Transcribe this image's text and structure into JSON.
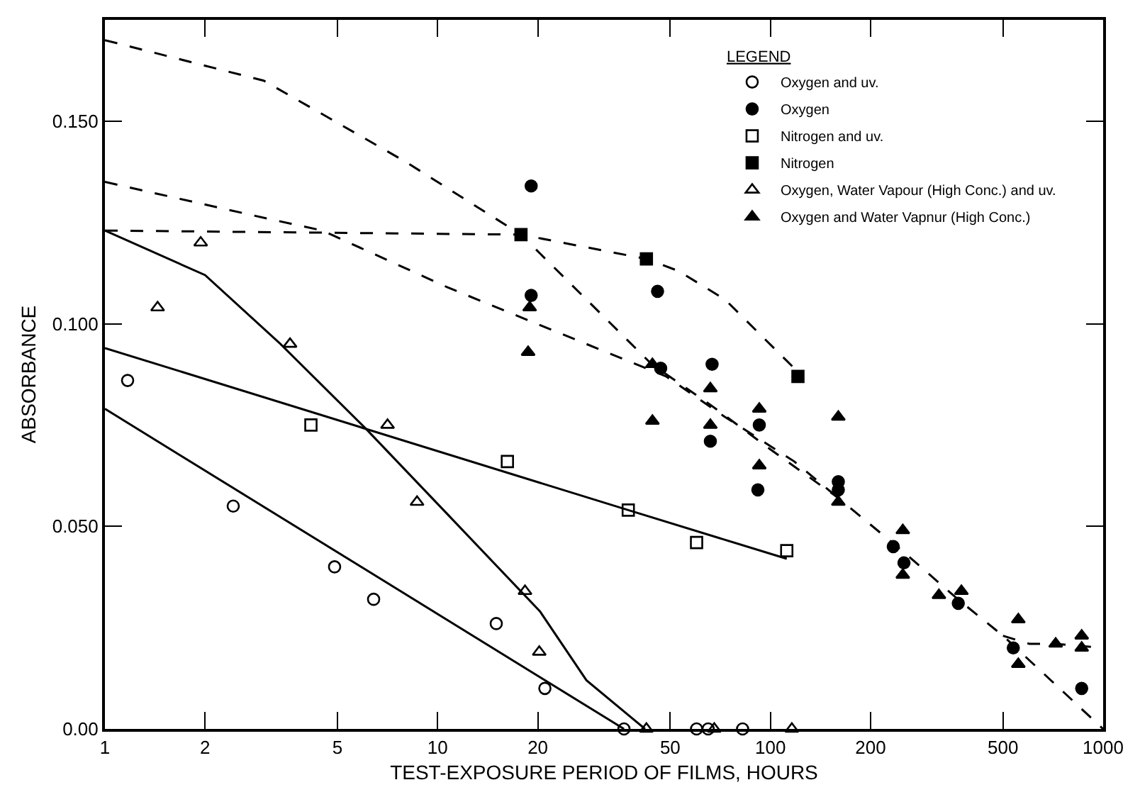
{
  "chart_data": {
    "type": "scatter",
    "xlabel": "TEST-EXPOSURE PERIOD OF FILMS, HOURS",
    "ylabel": "ABSORBANCE",
    "legend_title": "LEGEND",
    "log": "x",
    "xlim": [
      1,
      1000
    ],
    "xticks": [
      1,
      2,
      5,
      10,
      20,
      50,
      100,
      200,
      500,
      1000
    ],
    "ylim": [
      0,
      0.175
    ],
    "yticks": [
      {
        "value": 0,
        "label": "0.00"
      },
      {
        "value": 0.05,
        "label": "0.050"
      },
      {
        "value": 0.1,
        "label": "0.100"
      },
      {
        "value": 0.15,
        "label": "0.150"
      }
    ],
    "legend": "top right",
    "series": [
      {
        "name": "Oxygen and uv.",
        "color": "#000000",
        "marker": "circle-open",
        "x": [
          1.17,
          2.43,
          4.9,
          6.42,
          15.0,
          21.0,
          36.3,
          60,
          65,
          82.5
        ],
        "values": [
          0.086,
          0.055,
          0.04,
          0.032,
          0.026,
          0.01,
          0,
          0,
          0,
          0
        ]
      },
      {
        "name": "Oxygen",
        "color": "#000000",
        "marker": "circle",
        "x": [
          19.1,
          19.1,
          45.8,
          46.8,
          66.8,
          66,
          92.6,
          91.7,
          160,
          160,
          234,
          252,
          367,
          537,
          862
        ],
        "values": [
          0.134,
          0.107,
          0.108,
          0.089,
          0.09,
          0.071,
          0.075,
          0.059,
          0.061,
          0.059,
          0.045,
          0.041,
          0.031,
          0.02,
          0.01
        ]
      },
      {
        "name": "Nitrogen and uv.",
        "color": "#000000",
        "marker": "square-open",
        "x": [
          4.16,
          16.2,
          37.4,
          60,
          112
        ],
        "values": [
          0.075,
          0.066,
          0.054,
          0.046,
          0.044
        ]
      },
      {
        "name": "Nitrogen",
        "color": "#000000",
        "marker": "square",
        "x": [
          17.8,
          42.4,
          121
        ],
        "values": [
          0.122,
          0.116,
          0.087
        ]
      },
      {
        "name": "Oxygen, Water Vapour (High Conc.) and uv.",
        "color": "#000000",
        "marker": "triangle-open",
        "x": [
          1.44,
          1.94,
          3.6,
          7.07,
          8.67,
          18.3,
          20.2,
          42.4,
          67.8,
          116
        ],
        "values": [
          0.104,
          0.12,
          0.095,
          0.075,
          0.056,
          0.034,
          0.019,
          0,
          0,
          0
        ]
      },
      {
        "name": "Oxygen and Water Vapnur (High Conc.)",
        "color": "#000000",
        "marker": "triangle",
        "x": [
          18.9,
          18.7,
          44.2,
          44.2,
          66,
          66,
          92.6,
          92.6,
          160,
          160,
          250,
          250,
          321,
          375,
          556,
          556,
          720,
          862,
          862
        ],
        "values": [
          0.104,
          0.093,
          0.09,
          0.076,
          0.084,
          0.075,
          0.079,
          0.065,
          0.077,
          0.056,
          0.049,
          0.038,
          0.033,
          0.034,
          0.027,
          0.016,
          0.021,
          0.023,
          0.02
        ]
      },
      {
        "type": "line",
        "color": "#000000",
        "line_style": "solid",
        "marker": "none",
        "x": [
          1,
          36.3
        ],
        "values": [
          0.079,
          0
        ]
      },
      {
        "type": "line",
        "color": "#000000",
        "line_style": "solid",
        "marker": "none",
        "x": [
          1,
          2,
          3.37,
          6.1,
          10.7,
          20.3,
          28,
          42
        ],
        "values": [
          0.123,
          0.112,
          0.095,
          0.074,
          0.053,
          0.029,
          0.012,
          0
        ]
      },
      {
        "type": "line",
        "color": "#000000",
        "line_style": "solid",
        "marker": "none",
        "x": [
          1,
          37.4,
          112
        ],
        "values": [
          0.094,
          0.054,
          0.042
        ]
      },
      {
        "type": "line",
        "color": "#000000",
        "line_style": "dashed",
        "marker": "none",
        "x": [
          1,
          3,
          8,
          17.8,
          44,
          66,
          100,
          160,
          257,
          366,
          500,
          1000
        ],
        "values": [
          0.17,
          0.16,
          0.14,
          0.122,
          0.09,
          0.08,
          0.069,
          0.057,
          0.043,
          0.032,
          0.023,
          0
        ]
      },
      {
        "type": "line",
        "color": "#000000",
        "line_style": "dashed",
        "marker": "none",
        "x": [
          1,
          3.06,
          4.5,
          10.7,
          17.3,
          28,
          48.6,
          73,
          118,
          160
        ],
        "values": [
          0.135,
          0.126,
          0.123,
          0.109,
          0.102,
          0.095,
          0.087,
          0.077,
          0.066,
          0.057
        ]
      },
      {
        "type": "line",
        "color": "#000000",
        "line_style": "dashed",
        "marker": "none",
        "x": [
          1,
          17.8,
          42.4,
          53,
          73,
          118,
          121
        ],
        "values": [
          0.123,
          0.122,
          0.116,
          0.113,
          0.106,
          0.089,
          0.087
        ]
      },
      {
        "type": "line",
        "color": "#000000",
        "line_style": "dashed",
        "marker": "none",
        "x": [
          500,
          600,
          720,
          1000
        ],
        "values": [
          0.023,
          0.021,
          0.021,
          0.02
        ]
      }
    ]
  }
}
